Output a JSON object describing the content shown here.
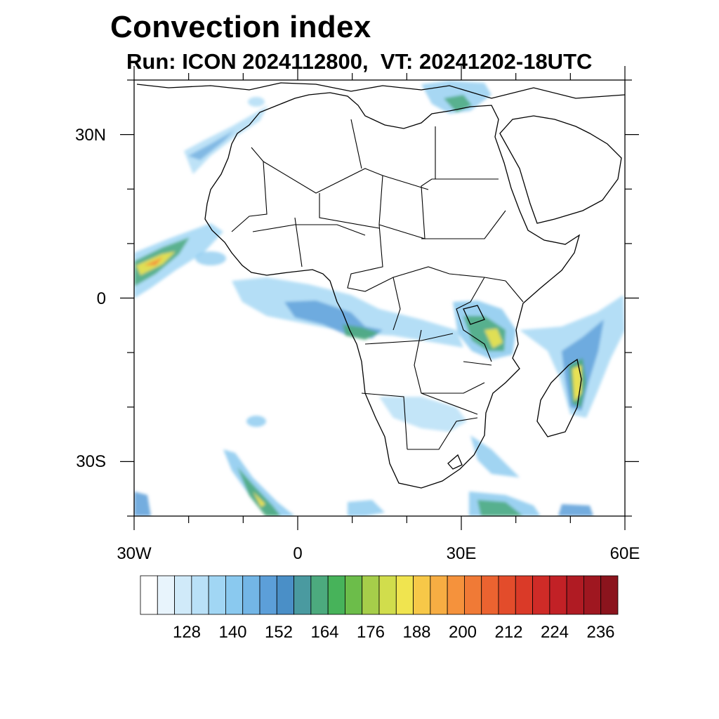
{
  "title": "Convection index",
  "subtitle": "Run: ICON 2024112800,  VT: 20241202-18UTC",
  "map": {
    "lon_range": [
      -30,
      60
    ],
    "lat_range": [
      -40,
      40
    ],
    "lat_ticks": [
      {
        "label": "30N",
        "value": 30
      },
      {
        "label": "0",
        "value": 0
      },
      {
        "label": "30S",
        "value": -30
      }
    ],
    "lon_ticks": [
      {
        "label": "30W",
        "value": -30
      },
      {
        "label": "0",
        "value": 0
      },
      {
        "label": "30E",
        "value": 30
      },
      {
        "label": "60E",
        "value": 60
      }
    ]
  },
  "colorbar": {
    "labels": [
      "128",
      "140",
      "152",
      "164",
      "176",
      "188",
      "200",
      "212",
      "224",
      "236"
    ],
    "colors": [
      "#ffffff",
      "#e8f4fc",
      "#d0eaf9",
      "#b9e0f7",
      "#a1d6f4",
      "#8ac9ef",
      "#73b6e6",
      "#5c9fd9",
      "#4a8fc7",
      "#4a9aa0",
      "#4caa7e",
      "#47b35a",
      "#6cbd4a",
      "#a6ce4a",
      "#d1dd4c",
      "#f0e44f",
      "#f7c848",
      "#f7ad43",
      "#f5923c",
      "#f07a36",
      "#eb6330",
      "#e34c2b",
      "#da3a28",
      "#cf2b27",
      "#c22126",
      "#b01b23",
      "#9f1720",
      "#8b141d"
    ]
  },
  "colors": {
    "weak": "#a1d6f4",
    "moderate": "#5c9fd9",
    "strong": "#4caa7e",
    "intense": "#f0e44f",
    "extreme": "#f5923c"
  }
}
